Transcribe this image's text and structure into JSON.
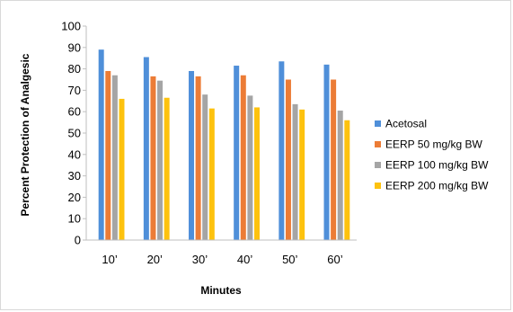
{
  "chart_data": {
    "type": "bar",
    "title": "",
    "xlabel": "Minutes",
    "ylabel": "Percent Protection of Analgesic",
    "ylim": [
      0,
      100
    ],
    "yticks": [
      0,
      10,
      20,
      30,
      40,
      50,
      60,
      70,
      80,
      90,
      100
    ],
    "grid": false,
    "legend_position": "right",
    "categories": [
      "10’",
      "20’",
      "30’",
      "40’",
      "50’",
      "60’"
    ],
    "series": [
      {
        "name": "Acetosal",
        "color": "#4f8fd9",
        "values": [
          89,
          85.5,
          79,
          81.5,
          83.5,
          82
        ]
      },
      {
        "name": "EERP 50 mg/kg BW",
        "color": "#ec7c36",
        "values": [
          79,
          76.5,
          76.5,
          77,
          75,
          75
        ]
      },
      {
        "name": "EERP 100 mg/kg BW",
        "color": "#a5a5a5",
        "values": [
          77,
          74.5,
          68,
          67.5,
          63.5,
          60.5
        ]
      },
      {
        "name": "EERP 200 mg/kg BW",
        "color": "#fdc20e",
        "values": [
          66,
          66.5,
          61.5,
          62,
          61,
          56
        ]
      }
    ]
  }
}
